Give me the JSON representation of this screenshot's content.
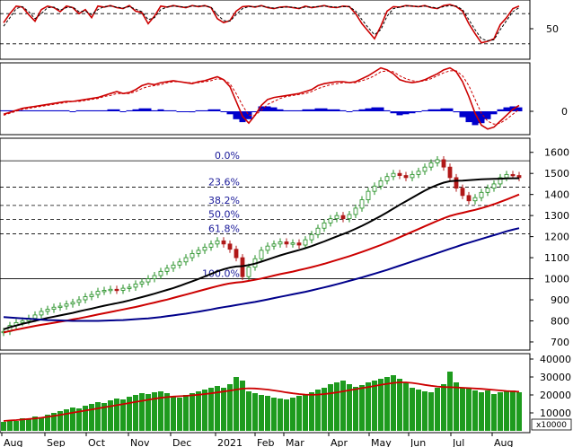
{
  "chart_data": [
    {
      "panel": "stochastic",
      "type": "line",
      "y_ticks": [
        50
      ],
      "ylim": [
        0,
        100
      ],
      "reference_lines": [
        80,
        20
      ],
      "series": [
        {
          "color": "#cc0000",
          "style": "solid",
          "values": [
            62,
            80,
            95,
            93,
            78,
            65,
            88,
            95,
            92,
            84,
            95,
            92,
            80,
            88,
            72,
            95,
            93,
            96,
            92,
            90,
            96,
            85,
            82,
            60,
            75,
            95,
            93,
            96,
            94,
            92,
            96,
            94,
            96,
            92,
            70,
            62,
            66,
            85,
            94,
            95,
            93,
            96,
            92,
            90,
            93,
            94,
            92,
            90,
            95,
            92,
            94,
            96,
            93,
            92,
            95,
            94,
            80,
            60,
            45,
            30,
            55,
            85,
            94,
            93,
            96,
            95,
            94,
            96,
            92,
            90,
            96,
            98,
            94,
            85,
            60,
            40,
            22,
            25,
            30,
            58,
            72,
            90,
            95
          ]
        },
        {
          "color": "#000000",
          "style": "dashed",
          "values": [
            55,
            72,
            90,
            94,
            84,
            70,
            80,
            92,
            93,
            87,
            92,
            93,
            84,
            85,
            78,
            88,
            94,
            95,
            93,
            91,
            94,
            89,
            84,
            68,
            72,
            88,
            93,
            95,
            94,
            93,
            95,
            95,
            95,
            93,
            78,
            66,
            65,
            78,
            90,
            94,
            94,
            95,
            93,
            91,
            92,
            93,
            93,
            91,
            93,
            93,
            94,
            95,
            94,
            93,
            94,
            94,
            85,
            68,
            52,
            38,
            48,
            75,
            90,
            93,
            95,
            95,
            94,
            95,
            93,
            91,
            94,
            96,
            95,
            88,
            68,
            48,
            30,
            26,
            28,
            48,
            66,
            84,
            92
          ]
        }
      ]
    },
    {
      "panel": "macd",
      "type": "line",
      "y_ticks": [
        0
      ],
      "series": [
        {
          "color": "#cc0000",
          "style": "solid",
          "values": [
            -3,
            -1,
            1,
            3,
            4,
            5,
            6,
            7,
            8,
            9,
            10,
            10,
            11,
            12,
            13,
            14,
            16,
            18,
            20,
            18,
            19,
            22,
            26,
            28,
            27,
            29,
            30,
            31,
            30,
            29,
            28,
            30,
            31,
            33,
            35,
            32,
            25,
            10,
            -5,
            -12,
            -4,
            6,
            12,
            14,
            15,
            16,
            17,
            18,
            20,
            22,
            26,
            28,
            29,
            30,
            30,
            29,
            30,
            33,
            36,
            40,
            44,
            42,
            38,
            32,
            30,
            29,
            30,
            32,
            35,
            38,
            42,
            44,
            40,
            30,
            15,
            -2,
            -14,
            -18,
            -16,
            -10,
            -4,
            2,
            6
          ]
        },
        {
          "color": "#cc0000",
          "style": "dashed",
          "values": [
            -4,
            -2,
            0,
            2,
            3,
            4,
            5,
            6,
            7,
            8,
            9,
            10,
            10,
            11,
            12,
            13,
            15,
            16,
            18,
            18,
            18,
            20,
            23,
            25,
            26,
            27,
            29,
            30,
            30,
            29,
            29,
            29,
            30,
            31,
            33,
            32,
            28,
            18,
            6,
            -4,
            -4,
            1,
            7,
            10,
            13,
            15,
            16,
            17,
            18,
            20,
            23,
            25,
            27,
            28,
            29,
            29,
            29,
            31,
            33,
            36,
            40,
            41,
            40,
            36,
            33,
            31,
            30,
            31,
            33,
            36,
            39,
            41,
            41,
            36,
            26,
            12,
            -2,
            -10,
            -13,
            -12,
            -8,
            -3,
            2
          ]
        },
        {
          "color": "#0000cc",
          "style": "histogram",
          "values": [
            1,
            1,
            1,
            1,
            1,
            1,
            1,
            1,
            1,
            1,
            1,
            0,
            1,
            1,
            1,
            1,
            1,
            2,
            2,
            0,
            1,
            2,
            3,
            3,
            1,
            2,
            1,
            1,
            0,
            0,
            -1,
            1,
            1,
            2,
            2,
            0,
            -3,
            -8,
            -11,
            -8,
            0,
            5,
            5,
            4,
            2,
            1,
            1,
            1,
            2,
            2,
            3,
            3,
            2,
            2,
            1,
            0,
            1,
            2,
            3,
            4,
            4,
            1,
            -2,
            -4,
            -3,
            -2,
            0,
            1,
            2,
            2,
            3,
            3,
            -1,
            -6,
            -11,
            -14,
            -12,
            -8,
            -3,
            2,
            4,
            5,
            4
          ]
        }
      ]
    },
    {
      "panel": "price",
      "type": "line",
      "x_ticks": [
        "Aug",
        "Sep",
        "Oct",
        "Nov",
        "Dec",
        "2021",
        "Feb",
        "Mar",
        "Apr",
        "May",
        "Jun",
        "Jul",
        "Aug"
      ],
      "y_ticks": [
        700,
        800,
        900,
        1000,
        1100,
        1200,
        1300,
        1400,
        1500,
        1600
      ],
      "ylim": [
        670,
        1650
      ],
      "fibonacci": {
        "levels": [
          {
            "label": "0.0%",
            "value": 1560,
            "style": "solid"
          },
          {
            "label": "23.6%",
            "value": 1435,
            "style": "dashed"
          },
          {
            "label": "38.2%",
            "value": 1348,
            "style": "dashed"
          },
          {
            "label": "50.0%",
            "value": 1282,
            "style": "dashed"
          },
          {
            "label": "61.8%",
            "value": 1213,
            "style": "dashed"
          },
          {
            "label": "100.0%",
            "value": 1000,
            "style": "solid"
          }
        ]
      },
      "candles": [
        750,
        778,
        792,
        800,
        812,
        828,
        845,
        855,
        865,
        870,
        880,
        888,
        900,
        915,
        925,
        940,
        945,
        950,
        945,
        955,
        960,
        975,
        985,
        1000,
        1015,
        1035,
        1050,
        1065,
        1080,
        1100,
        1120,
        1135,
        1150,
        1165,
        1180,
        1165,
        1140,
        1100,
        1010,
        1055,
        1095,
        1135,
        1155,
        1165,
        1175,
        1165,
        1170,
        1160,
        1185,
        1210,
        1240,
        1265,
        1285,
        1300,
        1285,
        1305,
        1335,
        1375,
        1415,
        1440,
        1465,
        1485,
        1500,
        1490,
        1480,
        1495,
        1510,
        1530,
        1550,
        1565,
        1530,
        1480,
        1430,
        1395,
        1370,
        1385,
        1410,
        1430,
        1450,
        1480,
        1495,
        1490,
        1480
      ],
      "series": [
        {
          "color": "#000000",
          "values": [
            760,
            770,
            778,
            786,
            793,
            800,
            807,
            814,
            820,
            826,
            832,
            838,
            845,
            852,
            858,
            865,
            872,
            878,
            884,
            890,
            897,
            905,
            913,
            921,
            929,
            938,
            947,
            956,
            966,
            977,
            988,
            999,
            1011,
            1023,
            1035,
            1045,
            1053,
            1058,
            1060,
            1065,
            1072,
            1081,
            1091,
            1101,
            1111,
            1120,
            1128,
            1136,
            1145,
            1155,
            1166,
            1177,
            1189,
            1201,
            1212,
            1224,
            1237,
            1251,
            1266,
            1282,
            1298,
            1315,
            1333,
            1351,
            1368,
            1385,
            1402,
            1418,
            1433,
            1446,
            1456,
            1463,
            1465,
            1466,
            1468,
            1470,
            1472,
            1473,
            1474,
            1475,
            1476,
            1477,
            1477
          ]
        },
        {
          "color": "#cc0000",
          "values": [
            745,
            752,
            758,
            764,
            770,
            776,
            781,
            786,
            791,
            796,
            801,
            807,
            812,
            818,
            824,
            830,
            836,
            842,
            848,
            854,
            860,
            866,
            873,
            880,
            887,
            894,
            901,
            909,
            917,
            925,
            933,
            941,
            949,
            957,
            965,
            972,
            978,
            982,
            985,
            990,
            995,
            1001,
            1008,
            1015,
            1022,
            1028,
            1034,
            1041,
            1048,
            1055,
            1063,
            1071,
            1080,
            1089,
            1098,
            1107,
            1117,
            1127,
            1138,
            1149,
            1160,
            1172,
            1184,
            1197,
            1210,
            1223,
            1236,
            1249,
            1262,
            1275,
            1287,
            1298,
            1306,
            1313,
            1320,
            1327,
            1335,
            1344,
            1354,
            1365,
            1376,
            1388,
            1400
          ]
        },
        {
          "color": "#00008b",
          "values": [
            818,
            816,
            814,
            812,
            810,
            808,
            806,
            804,
            803,
            802,
            801,
            800,
            800,
            800,
            800,
            800,
            801,
            802,
            803,
            804,
            806,
            808,
            810,
            812,
            815,
            818,
            822,
            826,
            830,
            834,
            839,
            844,
            849,
            854,
            860,
            865,
            870,
            875,
            880,
            885,
            890,
            896,
            902,
            908,
            914,
            920,
            926,
            932,
            938,
            945,
            952,
            959,
            966,
            974,
            982,
            990,
            998,
            1006,
            1015,
            1024,
            1033,
            1042,
            1052,
            1062,
            1072,
            1082,
            1092,
            1102,
            1112,
            1122,
            1132,
            1142,
            1152,
            1162,
            1171,
            1180,
            1189,
            1198,
            1207,
            1216,
            1225,
            1233,
            1240
          ]
        }
      ]
    },
    {
      "panel": "volume",
      "type": "bar",
      "y_ticks": [
        10000,
        20000,
        30000,
        40000
      ],
      "ylim": [
        0,
        42000
      ],
      "unit_label": "x10000",
      "bar_color": "#1e9b1e",
      "values": [
        5000,
        6000,
        5500,
        7000,
        6500,
        8000,
        7500,
        9000,
        10000,
        11000,
        12000,
        13000,
        12500,
        14000,
        15000,
        16000,
        15500,
        17000,
        18000,
        17500,
        19000,
        20000,
        21000,
        20500,
        21500,
        22000,
        21000,
        19000,
        18500,
        20000,
        21000,
        22000,
        23000,
        24000,
        25000,
        24000,
        26000,
        30000,
        28000,
        22000,
        21000,
        20000,
        19500,
        18500,
        18000,
        17500,
        18500,
        19500,
        20500,
        21500,
        23000,
        24000,
        26000,
        27000,
        28000,
        26000,
        24500,
        25500,
        27000,
        28000,
        29000,
        30000,
        31000,
        29000,
        27000,
        24000,
        23000,
        22000,
        21500,
        24000,
        26000,
        33000,
        27000,
        24000,
        23500,
        22500,
        21500,
        22500,
        20500,
        21500,
        22500,
        22500,
        21500
      ],
      "series": [
        {
          "color": "#cc0000",
          "values": [
            5500,
            5800,
            6000,
            6300,
            6600,
            6900,
            7300,
            7800,
            8300,
            8900,
            9500,
            10100,
            10700,
            11300,
            11900,
            12500,
            13100,
            13700,
            14300,
            14900,
            15500,
            16100,
            16700,
            17300,
            17900,
            18400,
            18800,
            19100,
            19300,
            19500,
            19800,
            20100,
            20500,
            20900,
            21400,
            21900,
            22400,
            23000,
            23500,
            23700,
            23600,
            23300,
            23000,
            22500,
            22000,
            21400,
            20900,
            20500,
            20200,
            20100,
            20200,
            20500,
            20900,
            21400,
            22000,
            22600,
            23200,
            23800,
            24400,
            25000,
            25600,
            26200,
            26700,
            27000,
            27000,
            26700,
            26200,
            25600,
            25100,
            24700,
            24400,
            24300,
            24200,
            24000,
            23800,
            23600,
            23400,
            23100,
            22800,
            22500,
            22200,
            22000,
            21800
          ]
        }
      ]
    }
  ]
}
